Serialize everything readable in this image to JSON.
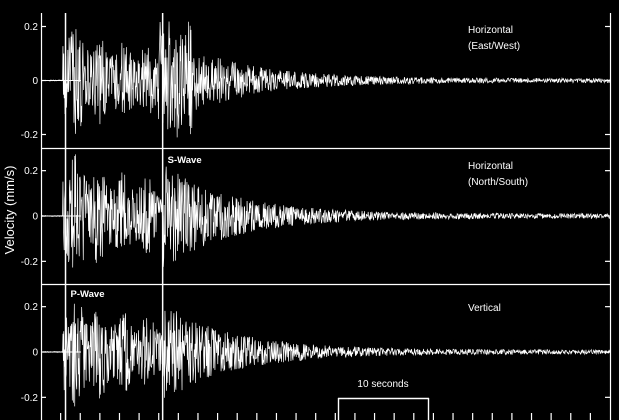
{
  "chart_data": {
    "type": "line",
    "ylabel": "Velocity (mm/s)",
    "panels": [
      {
        "label_lines": [
          "Horizontal",
          "(East/West)"
        ],
        "ylim": [
          -0.25,
          0.25
        ],
        "yticks": [
          0.2,
          0,
          -0.2
        ],
        "ytick_labels": [
          "0.2",
          "0",
          "-0.2"
        ],
        "peak_amplitude": 0.23
      },
      {
        "label_lines": [
          "Horizontal",
          "(North/South)"
        ],
        "ylim": [
          -0.3,
          0.3
        ],
        "yticks": [
          0.2,
          0,
          -0.2
        ],
        "ytick_labels": [
          "0.2",
          "0",
          "-0.2"
        ],
        "peak_amplitude": 0.3
      },
      {
        "label_lines": [
          "Vertical"
        ],
        "ylim": [
          -0.3,
          0.3
        ],
        "yticks": [
          0.2,
          0,
          -0.2
        ],
        "ytick_labels": [
          "0.2",
          "0",
          "-0.2"
        ],
        "peak_amplitude": 0.28
      }
    ],
    "markers": {
      "p_wave": {
        "label": "P-Wave",
        "time_s": 2.5
      },
      "s_wave": {
        "label": "S-Wave",
        "time_s": 12.4
      }
    },
    "scale_bar": {
      "label": "10 seconds",
      "duration_s": 10
    },
    "time_span_s": 58,
    "grid": false,
    "colors": {
      "background": "#000000",
      "foreground": "#ffffff"
    }
  }
}
